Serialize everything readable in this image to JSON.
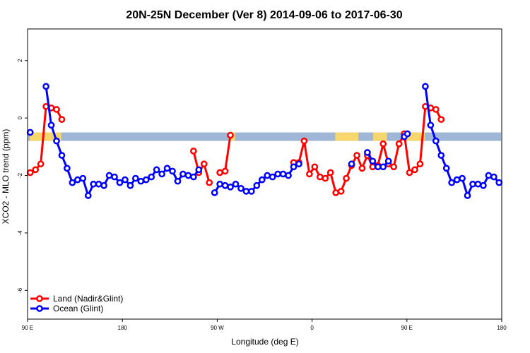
{
  "chart_data": {
    "type": "line",
    "title": "20N-25N December (Ver 8)   2014-09-06 to 2017-06-30",
    "xlabel": "Longitude (deg E)",
    "ylabel": "XCO2 - MLO trend (ppm)",
    "xlim": [
      90,
      540
    ],
    "ylim": [
      -7,
      3.1
    ],
    "x_ticks": [
      {
        "value": 90,
        "label": "90 E"
      },
      {
        "value": 180,
        "label": "180"
      },
      {
        "value": 270,
        "label": "90 W"
      },
      {
        "value": 360,
        "label": "0"
      },
      {
        "value": 450,
        "label": "90 E"
      },
      {
        "value": 540,
        "label": "180"
      }
    ],
    "y_ticks": [
      {
        "value": -6,
        "label": "-6"
      },
      {
        "value": -4,
        "label": "-4"
      },
      {
        "value": -2,
        "label": "-2"
      },
      {
        "value": 0,
        "label": "0"
      },
      {
        "value": 2,
        "label": "2"
      }
    ],
    "grid": false,
    "legend_position": "bottom-left",
    "land_mask_band": {
      "y": -0.65,
      "land_color": "#f5d76e",
      "ocean_color": "#9fb6d6"
    },
    "series": [
      {
        "name": "Land (Nadir&Glint)",
        "color": "#ff0000",
        "points": [
          [
            92.5,
            -1.9
          ],
          [
            97.5,
            -1.8
          ],
          [
            102.5,
            -1.6
          ],
          [
            107.5,
            0.4
          ],
          [
            112.5,
            0.35
          ],
          [
            117.5,
            0.3
          ],
          [
            122.5,
            -0.05
          ],
          [
            null,
            null
          ],
          [
            247.5,
            -1.15
          ],
          [
            252.5,
            -1.9
          ],
          [
            257.5,
            -1.6
          ],
          [
            262.5,
            -2.25
          ],
          [
            null,
            null
          ],
          [
            272.5,
            -1.9
          ],
          [
            277.5,
            -1.85
          ],
          [
            282.5,
            -0.6
          ],
          [
            null,
            null
          ],
          [
            342.5,
            -1.55
          ],
          [
            347.5,
            -1.55
          ],
          [
            352.5,
            -0.8
          ],
          [
            357.5,
            -1.95
          ],
          [
            362.5,
            -1.7
          ],
          [
            367.5,
            -2.05
          ],
          [
            372.5,
            -2.1
          ],
          [
            377.5,
            -1.9
          ],
          [
            382.5,
            -2.6
          ],
          [
            387.5,
            -2.55
          ],
          [
            392.5,
            -2.1
          ],
          [
            397.5,
            -1.65
          ],
          [
            402.5,
            -1.3
          ],
          [
            407.5,
            -1.75
          ],
          [
            412.5,
            -1.3
          ],
          [
            417.5,
            -1.7
          ],
          [
            422.5,
            -1.65
          ],
          [
            427.5,
            -0.9
          ],
          [
            432.5,
            -1.6
          ],
          [
            437.5,
            -1.7
          ],
          [
            442.5,
            -0.9
          ],
          [
            447.5,
            -0.55
          ],
          [
            452.5,
            -1.9
          ],
          [
            457.5,
            -1.8
          ],
          [
            462.5,
            -1.6
          ],
          [
            467.5,
            0.4
          ],
          [
            472.5,
            0.35
          ],
          [
            477.5,
            0.3
          ],
          [
            482.5,
            -0.05
          ]
        ]
      },
      {
        "name": "Ocean (Glint)",
        "color": "#0000ff",
        "points": [
          [
            92.5,
            -0.5
          ],
          [
            97.5,
            null
          ],
          [
            107.5,
            1.1
          ],
          [
            112.5,
            -0.25
          ],
          [
            117.5,
            -0.8
          ],
          [
            122.5,
            -1.3
          ],
          [
            127.5,
            -1.75
          ],
          [
            132.5,
            -2.25
          ],
          [
            137.5,
            -2.15
          ],
          [
            142.5,
            -2.1
          ],
          [
            147.5,
            -2.7
          ],
          [
            152.5,
            -2.3
          ],
          [
            157.5,
            -2.3
          ],
          [
            162.5,
            -2.35
          ],
          [
            167.5,
            -2.0
          ],
          [
            172.5,
            -2.05
          ],
          [
            177.5,
            -2.25
          ],
          [
            182.5,
            -2.15
          ],
          [
            187.5,
            -2.35
          ],
          [
            192.5,
            -2.1
          ],
          [
            197.5,
            -2.2
          ],
          [
            202.5,
            -2.15
          ],
          [
            207.5,
            -2.05
          ],
          [
            212.5,
            -1.8
          ],
          [
            217.5,
            -1.95
          ],
          [
            222.5,
            -1.75
          ],
          [
            227.5,
            -1.85
          ],
          [
            232.5,
            -2.2
          ],
          [
            237.5,
            -1.95
          ],
          [
            242.5,
            -2.0
          ],
          [
            247.5,
            -2.05
          ],
          [
            252.5,
            -1.8
          ],
          [
            null,
            null
          ],
          [
            267.5,
            -2.6
          ],
          [
            272.5,
            -2.3
          ],
          [
            277.5,
            -2.35
          ],
          [
            282.5,
            -2.4
          ],
          [
            287.5,
            -2.3
          ],
          [
            292.5,
            -2.45
          ],
          [
            297.5,
            -2.55
          ],
          [
            302.5,
            -2.55
          ],
          [
            307.5,
            -2.35
          ],
          [
            312.5,
            -2.15
          ],
          [
            317.5,
            -2.0
          ],
          [
            322.5,
            -2.05
          ],
          [
            327.5,
            -1.95
          ],
          [
            332.5,
            -1.95
          ],
          [
            337.5,
            -2.0
          ],
          [
            342.5,
            -1.7
          ],
          [
            347.5,
            -1.6
          ],
          [
            null,
            null
          ],
          [
            397.5,
            -1.6
          ],
          [
            null,
            null
          ],
          [
            412.5,
            -1.2
          ],
          [
            417.5,
            -1.5
          ],
          [
            422.5,
            -1.7
          ],
          [
            427.5,
            -1.7
          ],
          [
            432.5,
            -1.5
          ],
          [
            null,
            null
          ],
          [
            447.5,
            -0.65
          ],
          [
            450.5,
            -0.55
          ],
          [
            null,
            null
          ],
          [
            467.5,
            1.1
          ],
          [
            472.5,
            -0.25
          ],
          [
            477.5,
            -0.8
          ],
          [
            482.5,
            -1.3
          ],
          [
            487.5,
            -1.75
          ],
          [
            492.5,
            -2.25
          ],
          [
            497.5,
            -2.15
          ],
          [
            502.5,
            -2.1
          ],
          [
            507.5,
            -2.7
          ],
          [
            512.5,
            -2.3
          ],
          [
            517.5,
            -2.3
          ],
          [
            522.5,
            -2.35
          ],
          [
            527.5,
            -2.0
          ],
          [
            532.5,
            -2.05
          ],
          [
            537.5,
            -2.25
          ]
        ]
      }
    ]
  }
}
